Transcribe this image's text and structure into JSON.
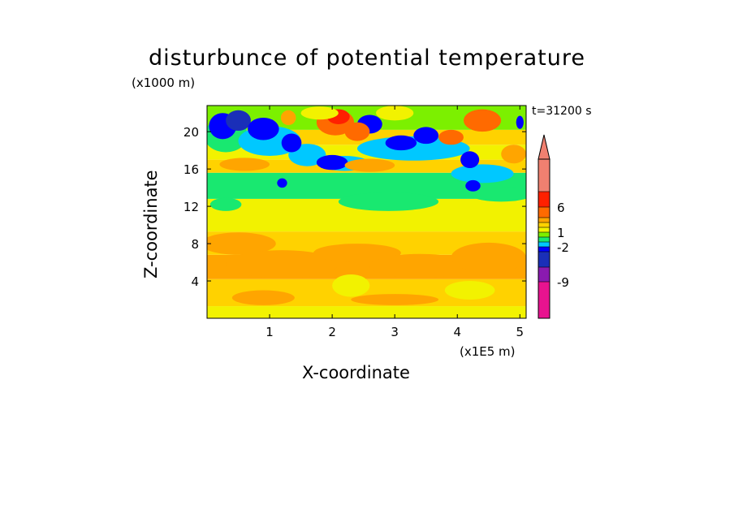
{
  "chart_data": {
    "type": "heatmap",
    "title": "disturbunce of potential temperature",
    "xlabel": "X-coordinate",
    "ylabel": "Z-coordinate",
    "x_unit": "(x1E5 m)",
    "y_unit": "(x1000 m)",
    "annotation": "t=31200 s",
    "xlim": [
      0,
      5.1
    ],
    "ylim": [
      0,
      22.8
    ],
    "x_ticks": [
      "1",
      "2",
      "3",
      "4",
      "5"
    ],
    "x_tick_values": [
      1,
      2,
      3,
      4,
      5
    ],
    "y_ticks": [
      "4",
      "8",
      "12",
      "16",
      "20"
    ],
    "y_tick_values": [
      4,
      8,
      12,
      16,
      20
    ],
    "colorbar": {
      "labels": [
        "6",
        "1",
        "-2",
        "-9"
      ],
      "label_values": [
        6,
        1,
        -2,
        -9
      ],
      "colors": [
        "#e8138f",
        "#8a1ab0",
        "#1a2fb8",
        "#0000ff",
        "#00c8ff",
        "#19e870",
        "#7cf000",
        "#f2f200",
        "#ffd200",
        "#ffa500",
        "#ff6a00",
        "#ff2000",
        "#f08070"
      ],
      "extend_top": true
    },
    "grid": false,
    "layers": [
      {
        "z": [
          0,
          5
        ],
        "level": "yellow-orange mix"
      },
      {
        "z": [
          5,
          10
        ],
        "level": "orange / 1 to 3"
      },
      {
        "z": [
          10,
          13
        ],
        "level": "yellow / ~0 to 1"
      },
      {
        "z": [
          13,
          16
        ],
        "level": "green / ~-1"
      },
      {
        "z": [
          16,
          19
        ],
        "level": "mixed orange, blue, cyan"
      },
      {
        "z": [
          19,
          22.8
        ],
        "level": "blue / red patches, -5 to 6"
      }
    ]
  },
  "colors": {
    "magenta": "#e8138f",
    "purple": "#8a1ab0",
    "navy": "#1a2fb8",
    "blue": "#0000ff",
    "cyan": "#00c8ff",
    "green": "#19e870",
    "lime": "#7cf000",
    "yellow": "#f2f200",
    "gold": "#ffd200",
    "orange": "#ffa500",
    "darkorange": "#ff6a00",
    "red": "#ff2000",
    "salmon": "#f08070"
  }
}
